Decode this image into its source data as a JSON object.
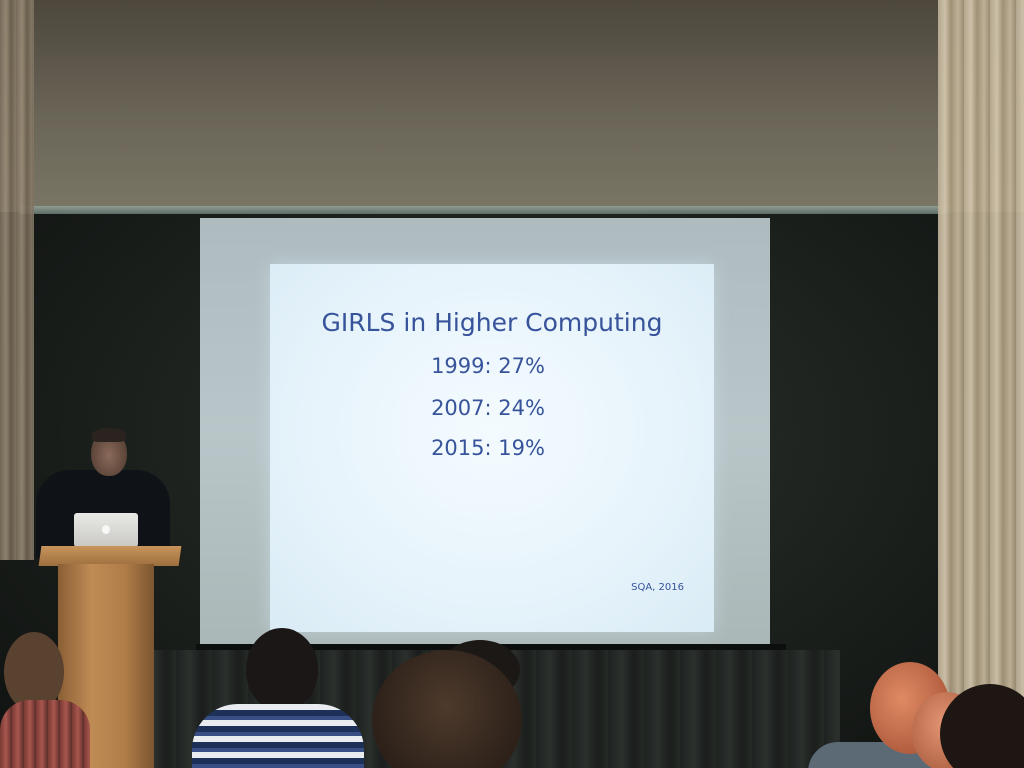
{
  "slide": {
    "title": "GIRLS in Higher Computing",
    "lines": [
      "1999: 27%",
      "2007: 24%",
      "2015: 19%"
    ],
    "source": "SQA, 2016",
    "text_color": "#37539a",
    "background_color": "#eef7fd"
  }
}
